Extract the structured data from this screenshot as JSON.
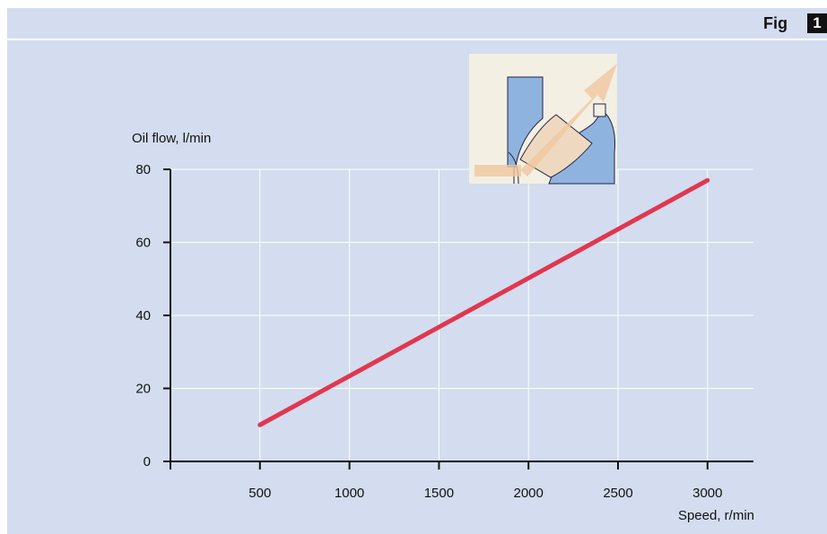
{
  "figure": {
    "label": "Fig",
    "number": "1"
  },
  "colors": {
    "panel": "#d3ddef",
    "line": "#e0374f",
    "grid": "#ffffff",
    "axis": "#111111"
  },
  "chart_data": {
    "type": "line",
    "title": "",
    "xlabel": "Speed, r/min",
    "ylabel": "Oil flow, l/min",
    "xlim": [
      0,
      3250
    ],
    "ylim": [
      0,
      80
    ],
    "x_ticks": [
      500,
      1000,
      1500,
      2000,
      2500,
      3000
    ],
    "y_ticks": [
      0,
      20,
      40,
      60,
      80
    ],
    "grid": true,
    "legend": "none",
    "series": [
      {
        "x": [
          500,
          3000
        ],
        "y": [
          10,
          77
        ]
      }
    ],
    "inset_icon": "bearing-oil-flow-icon"
  }
}
